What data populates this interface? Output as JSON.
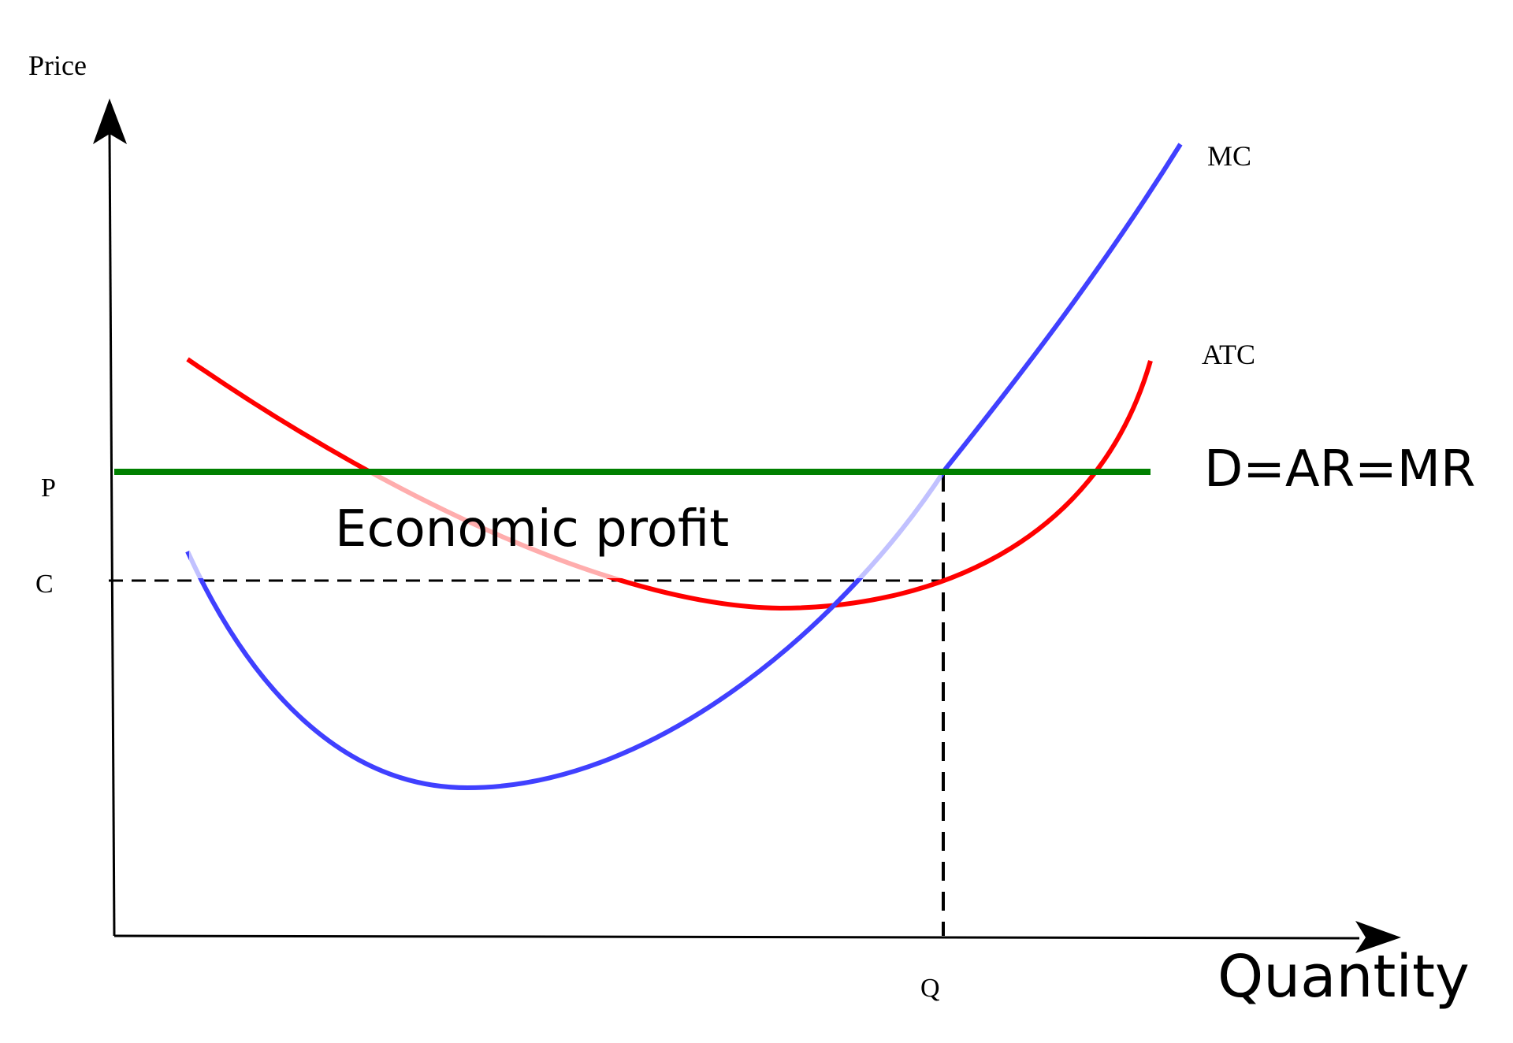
{
  "axes": {
    "y_label": "Price",
    "x_label": "Quantity"
  },
  "ticks": {
    "p": "P",
    "c": "C",
    "q": "Q"
  },
  "curves": {
    "mc_label": "MC",
    "atc_label": "ATC",
    "demand_label": "D=AR=MR"
  },
  "region": {
    "profit_label": "Economic profit"
  },
  "colors": {
    "mc": "#4040ff",
    "atc": "#ff0000",
    "demand": "#008000",
    "profit_overlay": "#ffffff",
    "axis": "#000000"
  }
}
